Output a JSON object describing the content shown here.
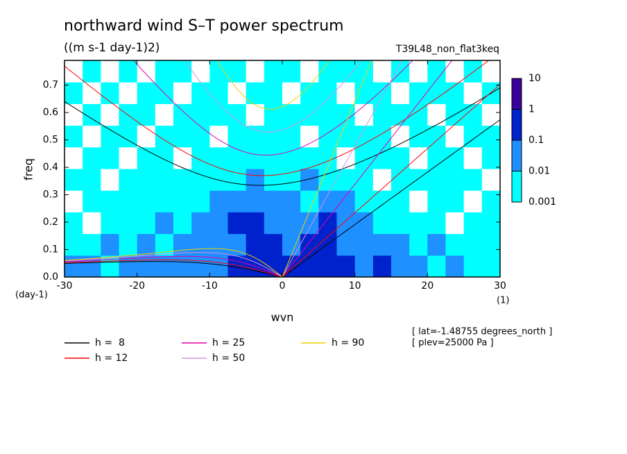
{
  "chart_data": {
    "type": "contour",
    "title": "northward wind S–T power spectrum",
    "subtitle": "((m s-1 day-1)2)",
    "run_label": "T39L48_non_flat3keq",
    "x_label": "wvn",
    "y_label": "freq",
    "y_unit": "(day-1)",
    "x_unit": "(1)",
    "notes": [
      "[ lat=-1.48755 degrees_north ]",
      "[ plev=25000 Pa ]"
    ],
    "xlim": [
      -30,
      30
    ],
    "ylim": [
      0,
      0.79
    ],
    "xticks": [
      -30,
      -20,
      -10,
      0,
      10,
      20,
      30
    ],
    "yticks": [
      {
        "value": 0,
        "label": "0.0"
      },
      0.1,
      0.2,
      0.3,
      0.4,
      0.5,
      0.6,
      0.7
    ],
    "levels": [
      0.001,
      0.01,
      0.1,
      1,
      10
    ],
    "level_colors": [
      "#00ffff",
      "#1e90ff",
      "#0022cc",
      "#3a009a"
    ],
    "z": [
      [
        0.05,
        0.05,
        0.005,
        0.05,
        0.05,
        0.05,
        0.05,
        0.05,
        0.05,
        0.5,
        0.5,
        0.5,
        0.5,
        0.5,
        0.5,
        0.5,
        0.05,
        0.5,
        0.05,
        0.05,
        0.005,
        0.05,
        0.005,
        0.005
      ],
      [
        0.005,
        0.005,
        0.05,
        0.005,
        0.05,
        0.005,
        0.05,
        0.05,
        0.05,
        0.05,
        0.5,
        0.5,
        0.05,
        0.5,
        0.5,
        0.05,
        0.05,
        0.05,
        0.05,
        0.005,
        0.05,
        0.005,
        0.005,
        0.005
      ],
      [
        0.005,
        0,
        0.005,
        0.005,
        0.005,
        0.05,
        0.005,
        0.05,
        0.05,
        0.5,
        0.5,
        0.05,
        0.05,
        0.05,
        0.5,
        0.05,
        0.05,
        0.005,
        0.005,
        0.005,
        0.005,
        0,
        0.005,
        0.005
      ],
      [
        0,
        0.005,
        0.005,
        0.005,
        0.005,
        0.005,
        0.005,
        0.005,
        0.05,
        0.05,
        0.05,
        0.05,
        0.05,
        0.005,
        0.05,
        0.05,
        0.005,
        0.005,
        0.005,
        0,
        0.005,
        0.005,
        0,
        0.005
      ],
      [
        0.005,
        0.005,
        0,
        0.005,
        0.005,
        0.005,
        0.005,
        0.005,
        0.005,
        0.005,
        0.05,
        0.005,
        0.005,
        0.05,
        0.005,
        0.005,
        0.005,
        0,
        0.005,
        0.005,
        0.005,
        0.005,
        0.005,
        0
      ],
      [
        0,
        0.005,
        0.005,
        0,
        0.005,
        0.005,
        0,
        0.005,
        0.005,
        0.005,
        0.005,
        0.005,
        0.005,
        0.005,
        0.005,
        0,
        0.005,
        0.005,
        0.005,
        0,
        0.005,
        0.005,
        0,
        0.005
      ],
      [
        0.005,
        0,
        0.005,
        0.005,
        0,
        0.005,
        0.005,
        0.005,
        0,
        0.005,
        0.005,
        0.005,
        0.005,
        0,
        0.005,
        0.005,
        0.005,
        0.005,
        0,
        0.005,
        0.005,
        0,
        0.005,
        0.005
      ],
      [
        0,
        0.005,
        0,
        0.005,
        0.005,
        0,
        0.005,
        0.005,
        0.005,
        0.005,
        0,
        0.005,
        0.005,
        0.005,
        0.005,
        0.005,
        0,
        0.005,
        0.005,
        0.005,
        0,
        0.005,
        0.005,
        0
      ],
      [
        0.005,
        0,
        0.005,
        0,
        0.005,
        0.005,
        0,
        0.005,
        0.005,
        0,
        0.005,
        0.005,
        0,
        0.005,
        0.005,
        0,
        0.005,
        0.005,
        0,
        0.005,
        0.005,
        0.005,
        0,
        0.005
      ],
      [
        0,
        0.005,
        0,
        0.005,
        0,
        0.005,
        0.005,
        0,
        0.005,
        0.005,
        0,
        0.005,
        0.005,
        0,
        0.005,
        0.005,
        0.005,
        0,
        0.005,
        0,
        0.005,
        0,
        0.005,
        0
      ]
    ],
    "series": [
      {
        "name": "h =  8",
        "h": 8,
        "color": "#000000"
      },
      {
        "name": "h = 12",
        "h": 12,
        "color": "#ff0000"
      },
      {
        "name": "h = 25",
        "h": 25,
        "color": "#e000b0"
      },
      {
        "name": "h = 50",
        "h": 50,
        "color": "#d890e0"
      },
      {
        "name": "h = 90",
        "h": 90,
        "color": "#f0d000"
      }
    ]
  }
}
